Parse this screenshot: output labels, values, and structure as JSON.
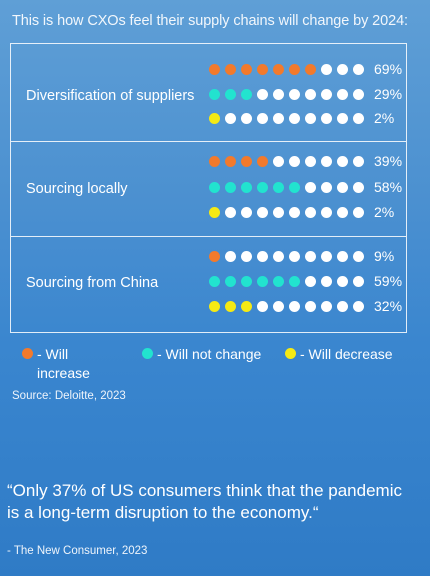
{
  "headline": "This is how CXOs feel their supply chains will change by 2024:",
  "colors": {
    "increase": "#f27a2c",
    "no_change": "#22e3cf",
    "decrease": "#f5ea14",
    "empty": "#ffffff"
  },
  "chart_data": {
    "type": "table",
    "dots_per_row": 10,
    "series": [
      {
        "name": "Will increase",
        "color": "#f27a2c"
      },
      {
        "name": "Will not change",
        "color": "#22e3cf"
      },
      {
        "name": "Will decrease",
        "color": "#f5ea14"
      }
    ],
    "groups": [
      {
        "label": "Diversification of suppliers",
        "rows": [
          {
            "series": "increase",
            "filled": 7,
            "value": "69%"
          },
          {
            "series": "no_change",
            "filled": 3,
            "value": "29%"
          },
          {
            "series": "decrease",
            "filled": 1,
            "value": "2%"
          }
        ]
      },
      {
        "label": "Sourcing locally",
        "rows": [
          {
            "series": "increase",
            "filled": 4,
            "value": "39%"
          },
          {
            "series": "no_change",
            "filled": 6,
            "value": "58%"
          },
          {
            "series": "decrease",
            "filled": 1,
            "value": "2%"
          }
        ]
      },
      {
        "label": "Sourcing from China",
        "rows": [
          {
            "series": "increase",
            "filled": 1,
            "value": "9%"
          },
          {
            "series": "no_change",
            "filled": 6,
            "value": "59%"
          },
          {
            "series": "decrease",
            "filled": 3,
            "value": "32%"
          }
        ]
      }
    ]
  },
  "legend": {
    "increase": "- Will increase",
    "no_change": "- Will not change",
    "decrease": "- Will decrease"
  },
  "source": "Source: Deloitte, 2023",
  "quote": "“Only 37% of US consumers think that the pandemic is a long-term disruption to the economy.“",
  "attribution": "- The New Consumer, 2023"
}
